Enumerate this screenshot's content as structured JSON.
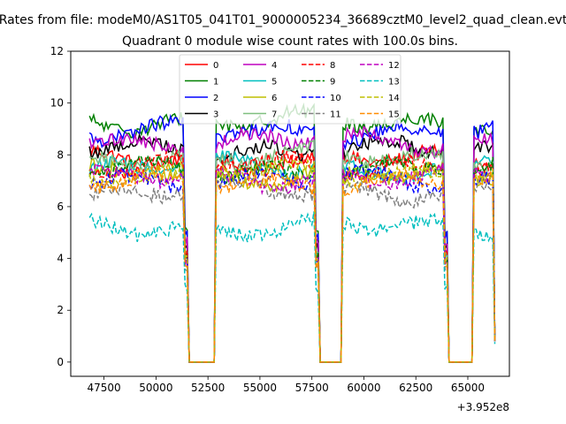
{
  "chart_data": {
    "type": "line",
    "suptitle": "Rates from file: modeM0/AS1T05_041T01_9000005234_36689cztM0_level2_quad_clean.evt",
    "title": "Quadrant 0 module wise count rates with 100.0s bins.",
    "xlabel": "",
    "ylabel": "",
    "x_offset_label": "+3.952e8",
    "xlim": [
      45900,
      67000
    ],
    "ylim": [
      -0.55,
      12
    ],
    "xticks": [
      47500,
      50000,
      52500,
      55000,
      57500,
      60000,
      62500,
      65000
    ],
    "xtick_labels": [
      "47500",
      "50000",
      "52500",
      "55000",
      "57500",
      "60000",
      "62500",
      "65000"
    ],
    "yticks": [
      0,
      2,
      4,
      6,
      8,
      10,
      12
    ],
    "ytick_labels": [
      "0",
      "2",
      "4",
      "6",
      "8",
      "10",
      "12"
    ],
    "grid": false,
    "legend_location": "upper center",
    "legend_columns": 4,
    "x_start": 46800,
    "bin_seconds": 100,
    "n_bins": 196,
    "segments": [
      [
        46800,
        51300
      ],
      [
        52800,
        57600
      ],
      [
        58900,
        63800
      ],
      [
        65300,
        66300
      ]
    ],
    "gaps": [
      [
        51600,
        52800
      ],
      [
        57900,
        58900
      ],
      [
        64100,
        65200
      ]
    ],
    "noise_amplitude": 0.28,
    "series": [
      {
        "name": "0",
        "color": "#ff0000",
        "dash": "solid",
        "level": 7.8,
        "end_value": 0.8
      },
      {
        "name": "1",
        "color": "#008000",
        "dash": "solid",
        "level": 9.3,
        "end_value": 0.8
      },
      {
        "name": "2",
        "color": "#0000ff",
        "dash": "solid",
        "level": 8.9,
        "end_value": 0.8
      },
      {
        "name": "3",
        "color": "#000000",
        "dash": "solid",
        "level": 8.2,
        "end_value": 0.8
      },
      {
        "name": "4",
        "color": "#bf00bf",
        "dash": "solid",
        "level": 8.5,
        "end_value": 0.8
      },
      {
        "name": "5",
        "color": "#00bfbf",
        "dash": "solid",
        "level": 7.5,
        "end_value": 0.8
      },
      {
        "name": "6",
        "color": "#bfbf00",
        "dash": "solid",
        "level": 7.2,
        "end_value": 0.8
      },
      {
        "name": "7",
        "color": "#7fbf7f",
        "dash": "solid",
        "level": 7.9,
        "end_value": 0.8
      },
      {
        "name": "8",
        "color": "#ff0000",
        "dash": "dashed",
        "level": 7.6,
        "end_value": 0.8
      },
      {
        "name": "9",
        "color": "#008000",
        "dash": "dashed",
        "level": 7.4,
        "end_value": 0.8
      },
      {
        "name": "10",
        "color": "#0000ff",
        "dash": "dashed",
        "level": 7.0,
        "end_value": 0.8
      },
      {
        "name": "11",
        "color": "#808080",
        "dash": "dashed",
        "level": 6.6,
        "end_value": 0.8
      },
      {
        "name": "12",
        "color": "#bf00bf",
        "dash": "dashed",
        "level": 7.1,
        "end_value": 0.8
      },
      {
        "name": "13",
        "color": "#00bfbf",
        "dash": "dashed",
        "level": 5.2,
        "end_value": 0.7
      },
      {
        "name": "14",
        "color": "#bfbf00",
        "dash": "dashed",
        "level": 7.3,
        "end_value": 0.8
      },
      {
        "name": "15",
        "color": "#ff8c00",
        "dash": "dashed",
        "level": 6.9,
        "end_value": 0.8
      }
    ]
  }
}
